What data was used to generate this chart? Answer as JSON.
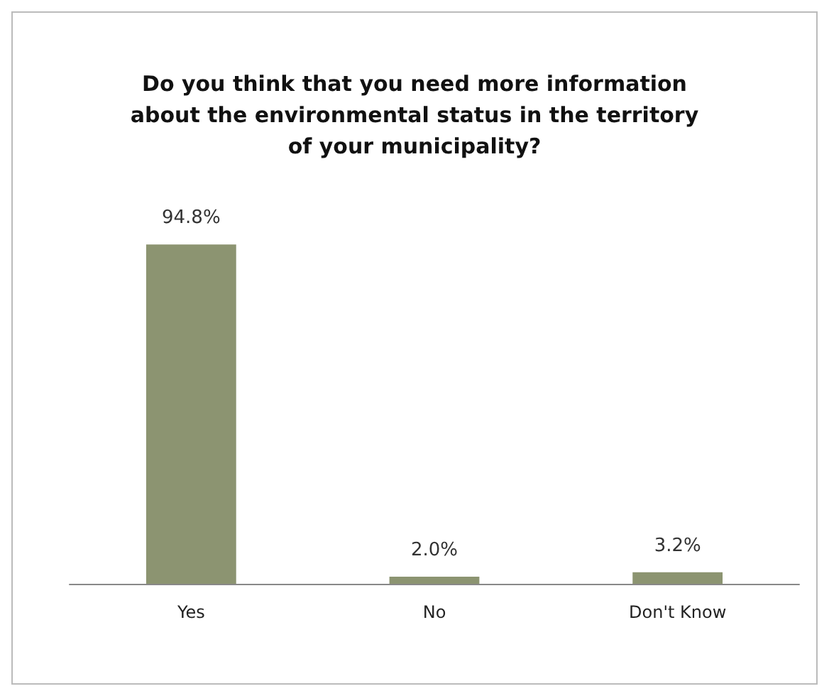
{
  "chart_data": {
    "type": "bar",
    "title": "Do you think that you need more information\nabout the environmental status in the territory\nof your municipality?",
    "categories": [
      "Yes",
      "No",
      "Don't Know"
    ],
    "values": [
      94.8,
      2.0,
      3.2
    ],
    "value_labels": [
      "94.8%",
      "2.0%",
      "3.2%"
    ],
    "color": "#8c9471"
  }
}
